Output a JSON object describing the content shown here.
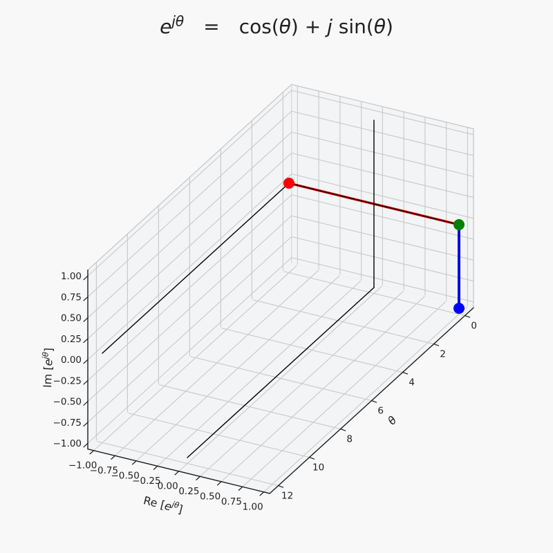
{
  "figure": {
    "background": "#f8f8f8",
    "title_plain": "e^{jθ}  =  cos(θ) + j sin(θ)"
  },
  "chart_data": {
    "type": "line",
    "projection": "3d",
    "title": "e^{jθ} = cos(θ) + j sin(θ)",
    "title_parts": [
      {
        "t": "e",
        "i": true
      },
      {
        "t": "jθ",
        "i": true,
        "sup": true
      },
      {
        "t": "  =  ",
        "i": false
      },
      {
        "t": "cos(",
        "i": false
      },
      {
        "t": "θ",
        "i": true
      },
      {
        "t": ") + ",
        "i": false
      },
      {
        "t": "j",
        "i": true
      },
      {
        "t": " sin(",
        "i": false
      },
      {
        "t": "θ",
        "i": true
      },
      {
        "t": ")",
        "i": false
      }
    ],
    "theta_current": 0,
    "grid": true,
    "colors": {
      "grid": "#c8c8c8",
      "box_edge": "#c4c4c4",
      "pane_meet_edge": "#f0f1f4",
      "pane_fill": "#eff0f4",
      "spine": "#1c1c1c",
      "axis_line": "#000000",
      "red": "#ff0000",
      "red_line": "#e60000",
      "green": "#008000",
      "blue": "#0000ff",
      "blue_line": "#0a0af0"
    },
    "axes": {
      "x": {
        "label": "Re [e^{jθ}]",
        "label_parts": [
          {
            "t": "Re [",
            "i": false
          },
          {
            "t": "e",
            "i": true
          },
          {
            "t": "jθ",
            "i": true,
            "sup": true
          },
          {
            "t": "]",
            "i": false
          }
        ],
        "tick_values": [
          -1,
          -0.75,
          -0.5,
          -0.25,
          0,
          0.25,
          0.5,
          0.75,
          1
        ],
        "tick_labels": [
          "−1.00",
          "−0.75",
          "−0.50",
          "−0.25",
          "0.00",
          "0.25",
          "0.50",
          "0.75",
          "1.00"
        ],
        "data_range": [
          -1,
          1
        ]
      },
      "y": {
        "label": "θ",
        "tick_values": [
          0,
          2,
          4,
          6,
          8,
          10,
          12
        ],
        "tick_labels": [
          "0",
          "2",
          "4",
          "6",
          "8",
          "10",
          "12"
        ],
        "data_range": [
          0,
          12
        ]
      },
      "z": {
        "label": "Im [e^{jθ}]",
        "label_parts": [
          {
            "t": "Im [",
            "i": false
          },
          {
            "t": "e",
            "i": true
          },
          {
            "t": "jθ",
            "i": true,
            "sup": true
          },
          {
            "t": "]",
            "i": false
          }
        ],
        "tick_values": [
          -1,
          -0.75,
          -0.5,
          -0.25,
          0,
          0.25,
          0.5,
          0.75,
          1
        ],
        "tick_labels": [
          "−1.00",
          "−0.75",
          "−0.50",
          "−0.25",
          "0.00",
          "0.25",
          "0.50",
          "0.75",
          "1.00"
        ],
        "data_range": [
          -1,
          1
        ]
      }
    },
    "points": [
      {
        "name": "point-red",
        "color": "#ff0000",
        "coord": [
          -1,
          0,
          0
        ],
        "radius": 8
      },
      {
        "name": "point-blue",
        "color": "#0000ff",
        "coord": [
          1,
          0,
          -1
        ],
        "radius": 8
      },
      {
        "name": "point-green",
        "color": "#008000",
        "coord": [
          1,
          0,
          0
        ],
        "radius": 8
      }
    ],
    "segments": [
      {
        "name": "line-red",
        "color": "#e60000",
        "width": 3.4,
        "from": [
          -1,
          0,
          0
        ],
        "to": [
          1,
          0,
          0
        ]
      },
      {
        "name": "axis-theta-on-wall",
        "color": "#000000",
        "width": 1.4,
        "from": [
          -1,
          0,
          0
        ],
        "to": [
          -1,
          12,
          0
        ]
      },
      {
        "name": "axis-theta-on-floor",
        "color": "#000000",
        "width": 1.4,
        "from": [
          0,
          0,
          -1
        ],
        "to": [
          0,
          12,
          -1
        ]
      },
      {
        "name": "axis-im-at-origin",
        "color": "#000000",
        "width": 1.4,
        "from": [
          0,
          0,
          -1
        ],
        "to": [
          0,
          0,
          1
        ]
      },
      {
        "name": "axis-re-at-origin",
        "color": "#000000",
        "width": 1.4,
        "from": [
          -1,
          0,
          0
        ],
        "to": [
          1,
          0,
          0
        ]
      },
      {
        "name": "line-blue",
        "color": "#0a0af0",
        "width": 4,
        "from": [
          1,
          0,
          0
        ],
        "to": [
          1,
          0,
          -1
        ]
      }
    ]
  }
}
